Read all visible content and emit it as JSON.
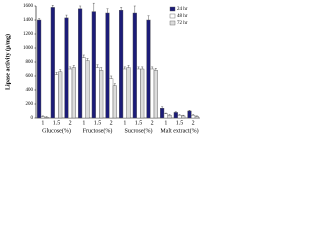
{
  "chart_data": {
    "type": "bar",
    "y_label": "Lipase activity (μ/mg)",
    "categories": [
      "1",
      "1.5",
      "2",
      "1",
      "1.5",
      "2",
      "1",
      "1.5",
      "2",
      "1",
      "1.5",
      "2"
    ],
    "groups": [
      "Glucose(%)",
      "Fructose(%)",
      "Sucrose(%)",
      "Malt extract(%)"
    ],
    "series": [
      {
        "name": "24 hr",
        "color": "#1c1c78",
        "values": [
          1400,
          1580,
          1430,
          1560,
          1520,
          1500,
          1540,
          1500,
          1400,
          140,
          80,
          100
        ],
        "errors": [
          20,
          30,
          40,
          40,
          120,
          60,
          40,
          100,
          60,
          20,
          10,
          10
        ]
      },
      {
        "name": "48 hr",
        "color": "#ffffff",
        "values": [
          20,
          620,
          700,
          860,
          720,
          560,
          700,
          700,
          700,
          60,
          40,
          40
        ],
        "errors": [
          10,
          30,
          30,
          40,
          40,
          40,
          30,
          30,
          30,
          10,
          10,
          10
        ]
      },
      {
        "name": "72 hr",
        "color": "#dcdcdc",
        "values": [
          10,
          660,
          720,
          820,
          680,
          460,
          720,
          700,
          680,
          40,
          30,
          20
        ],
        "errors": [
          10,
          30,
          30,
          30,
          40,
          30,
          30,
          30,
          30,
          10,
          10,
          10
        ]
      }
    ],
    "ylim": [
      0,
      1600
    ],
    "yticks": [
      0,
      200,
      400,
      600,
      800,
      1000,
      1200,
      1400,
      1600
    ],
    "legend": "top-right"
  }
}
